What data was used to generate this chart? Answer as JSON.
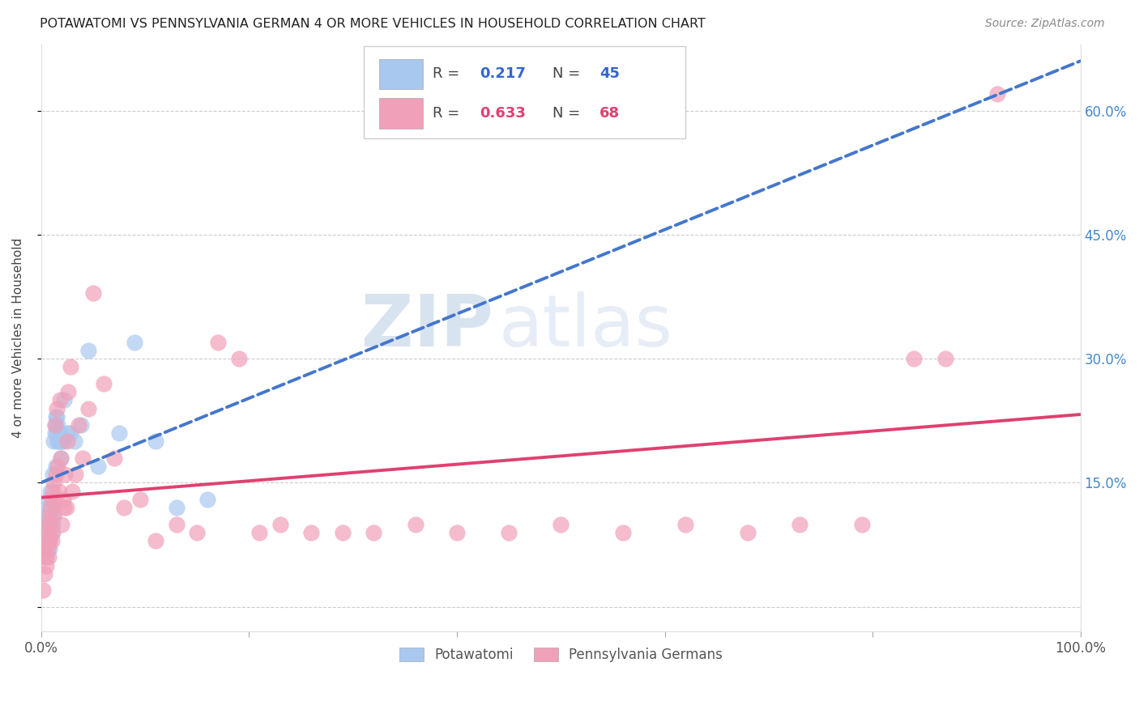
{
  "title": "POTAWATOMI VS PENNSYLVANIA GERMAN 4 OR MORE VEHICLES IN HOUSEHOLD CORRELATION CHART",
  "source": "Source: ZipAtlas.com",
  "ylabel": "4 or more Vehicles in Household",
  "xlim": [
    0,
    1.0
  ],
  "ylim": [
    -0.03,
    0.68
  ],
  "blue_color": "#a8c8f0",
  "pink_color": "#f0a0b8",
  "blue_line_color": "#4477cc",
  "pink_line_color": "#e04070",
  "watermark_color": "#c8d8ee",
  "potawatomi_x": [
    0.002,
    0.003,
    0.004,
    0.004,
    0.005,
    0.005,
    0.006,
    0.006,
    0.007,
    0.007,
    0.008,
    0.008,
    0.009,
    0.009,
    0.01,
    0.01,
    0.011,
    0.011,
    0.012,
    0.012,
    0.013,
    0.013,
    0.014,
    0.014,
    0.015,
    0.015,
    0.016,
    0.016,
    0.017,
    0.018,
    0.019,
    0.02,
    0.021,
    0.022,
    0.025,
    0.028,
    0.032,
    0.038,
    0.045,
    0.055,
    0.075,
    0.09,
    0.11,
    0.13,
    0.16
  ],
  "potawatomi_y": [
    0.07,
    0.09,
    0.08,
    0.11,
    0.06,
    0.1,
    0.09,
    0.12,
    0.08,
    0.13,
    0.07,
    0.11,
    0.1,
    0.14,
    0.09,
    0.12,
    0.1,
    0.16,
    0.11,
    0.2,
    0.21,
    0.22,
    0.23,
    0.17,
    0.21,
    0.23,
    0.2,
    0.22,
    0.2,
    0.21,
    0.18,
    0.2,
    0.2,
    0.25,
    0.21,
    0.21,
    0.2,
    0.22,
    0.31,
    0.17,
    0.21,
    0.32,
    0.2,
    0.12,
    0.13
  ],
  "pagerman_x": [
    0.002,
    0.003,
    0.003,
    0.004,
    0.005,
    0.005,
    0.006,
    0.006,
    0.007,
    0.007,
    0.008,
    0.008,
    0.009,
    0.009,
    0.01,
    0.01,
    0.011,
    0.011,
    0.012,
    0.012,
    0.013,
    0.013,
    0.014,
    0.015,
    0.016,
    0.017,
    0.018,
    0.019,
    0.02,
    0.021,
    0.022,
    0.023,
    0.024,
    0.025,
    0.026,
    0.028,
    0.03,
    0.033,
    0.036,
    0.04,
    0.045,
    0.05,
    0.06,
    0.07,
    0.08,
    0.095,
    0.11,
    0.13,
    0.15,
    0.17,
    0.19,
    0.21,
    0.23,
    0.26,
    0.29,
    0.32,
    0.36,
    0.4,
    0.45,
    0.5,
    0.56,
    0.62,
    0.68,
    0.73,
    0.79,
    0.84,
    0.87,
    0.92
  ],
  "pagerman_y": [
    0.02,
    0.04,
    0.07,
    0.06,
    0.05,
    0.08,
    0.07,
    0.1,
    0.06,
    0.09,
    0.08,
    0.11,
    0.1,
    0.12,
    0.08,
    0.13,
    0.09,
    0.14,
    0.11,
    0.15,
    0.13,
    0.22,
    0.16,
    0.24,
    0.17,
    0.14,
    0.25,
    0.18,
    0.1,
    0.13,
    0.12,
    0.16,
    0.12,
    0.2,
    0.26,
    0.29,
    0.14,
    0.16,
    0.22,
    0.18,
    0.24,
    0.38,
    0.27,
    0.18,
    0.12,
    0.13,
    0.08,
    0.1,
    0.09,
    0.32,
    0.3,
    0.09,
    0.1,
    0.09,
    0.09,
    0.09,
    0.1,
    0.09,
    0.09,
    0.1,
    0.09,
    0.1,
    0.09,
    0.1,
    0.1,
    0.3,
    0.3,
    0.62
  ]
}
